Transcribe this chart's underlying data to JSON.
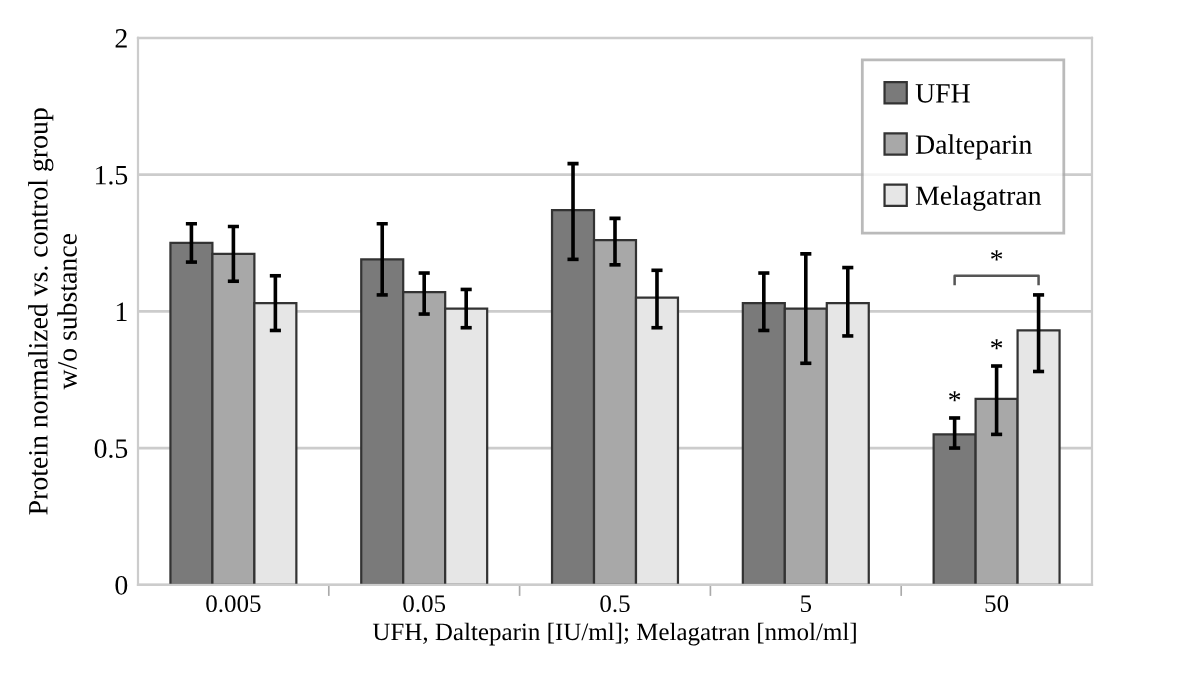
{
  "chart_data": {
    "type": "bar",
    "xlabel": "UFH, Dalteparin [IU/ml]; Melagatran [nmol/ml]",
    "ylabel": "Protein normalized vs. control group\nw/o substance",
    "categories": [
      "0.005",
      "0.05",
      "0.5",
      "5",
      "50"
    ],
    "series": [
      {
        "name": "UFH",
        "color": "#7a7a7a",
        "values": [
          1.25,
          1.19,
          1.37,
          1.03,
          0.55
        ],
        "errors": [
          [
            1.18,
            1.32
          ],
          [
            1.06,
            1.32
          ],
          [
            1.19,
            1.54
          ],
          [
            0.93,
            1.14
          ],
          [
            0.5,
            0.61
          ]
        ]
      },
      {
        "name": "Dalteparin",
        "color": "#a8a8a8",
        "values": [
          1.21,
          1.07,
          1.26,
          1.01,
          0.68
        ],
        "errors": [
          [
            1.11,
            1.31
          ],
          [
            0.99,
            1.14
          ],
          [
            1.17,
            1.34
          ],
          [
            0.81,
            1.21
          ],
          [
            0.55,
            0.8
          ]
        ]
      },
      {
        "name": "Melagatran",
        "color": "#e6e6e6",
        "values": [
          1.03,
          1.01,
          1.05,
          1.03,
          0.93
        ],
        "errors": [
          [
            0.93,
            1.13
          ],
          [
            0.94,
            1.08
          ],
          [
            0.94,
            1.15
          ],
          [
            0.91,
            1.16
          ],
          [
            0.78,
            1.06
          ]
        ]
      }
    ],
    "annotations": [
      {
        "text": "*",
        "x": "50",
        "y": 0.61
      },
      {
        "text": "*",
        "x": "50",
        "y": 0.8
      },
      "*"
    ],
    "ylim": [
      0,
      2
    ],
    "yticks": [
      0,
      0.5,
      1,
      {
        "value": 1.5,
        "label": "1.5"
      },
      2
    ],
    "grid": "y",
    "legend": "top right"
  }
}
